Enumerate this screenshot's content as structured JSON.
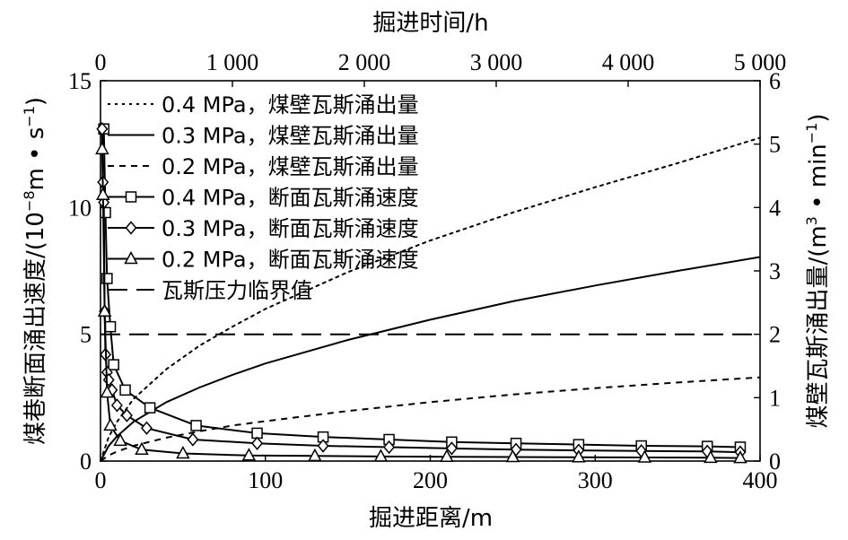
{
  "chart_data": {
    "type": "line",
    "x_bottom": {
      "label": "掘进距离/m",
      "range": [
        0,
        400
      ],
      "ticks": [
        0,
        100,
        200,
        300,
        400
      ],
      "tick_labels": [
        "0",
        "100",
        "200",
        "300",
        "400"
      ]
    },
    "x_top": {
      "label": "掘进时间/h",
      "range": [
        0,
        5000
      ],
      "ticks": [
        0,
        1000,
        2000,
        3000,
        4000,
        5000
      ],
      "tick_labels": [
        "0",
        "1 000",
        "2 000",
        "3 000",
        "4 000",
        "5 000"
      ]
    },
    "y_left": {
      "label_main": "煤巷断面涌出速度/(10",
      "label_sup1": "−8",
      "label_mid": "m • s",
      "label_sup2": "−1",
      "label_end": ")",
      "range": [
        0,
        15
      ],
      "ticks": [
        0,
        5,
        10,
        15
      ],
      "tick_labels": [
        "0",
        "5",
        "10",
        "15"
      ]
    },
    "y_right": {
      "label_main": "煤壁瓦斯涌出量/(m",
      "label_sup1": "3",
      "label_mid": " • min",
      "label_sup2": "−1",
      "label_end": ")",
      "range": [
        0,
        6
      ],
      "ticks": [
        0,
        1,
        2,
        3,
        4,
        5,
        6
      ],
      "tick_labels": [
        "0",
        "1",
        "2",
        "3",
        "4",
        "5",
        "6"
      ]
    },
    "series": [
      {
        "name": "0.4 MPa，煤壁瓦斯涌出量",
        "axis": "right",
        "style": "dotted",
        "marker": "none",
        "x": [
          0,
          5,
          10,
          20,
          40,
          60,
          80,
          100,
          150,
          200,
          250,
          300,
          350,
          400
        ],
        "y": [
          0,
          0.38,
          0.62,
          0.98,
          1.45,
          1.82,
          2.12,
          2.4,
          2.98,
          3.48,
          3.92,
          4.32,
          4.7,
          5.1
        ]
      },
      {
        "name": "0.3 MPa，煤壁瓦斯涌出量",
        "axis": "right",
        "style": "solid",
        "marker": "none",
        "x": [
          0,
          5,
          10,
          20,
          40,
          60,
          80,
          100,
          150,
          200,
          250,
          300,
          350,
          400
        ],
        "y": [
          0,
          0.24,
          0.39,
          0.62,
          0.93,
          1.16,
          1.36,
          1.54,
          1.91,
          2.23,
          2.52,
          2.77,
          3.0,
          3.22
        ]
      },
      {
        "name": "0.2 MPa，煤壁瓦斯涌出量",
        "axis": "right",
        "style": "dashed",
        "marker": "none",
        "x": [
          0,
          5,
          10,
          20,
          40,
          60,
          80,
          100,
          150,
          200,
          250,
          300,
          350,
          400
        ],
        "y": [
          0,
          0.09,
          0.15,
          0.24,
          0.37,
          0.47,
          0.56,
          0.63,
          0.79,
          0.93,
          1.05,
          1.15,
          1.24,
          1.32
        ]
      },
      {
        "name": "0.4 MPa，断面瓦斯涌速度",
        "axis": "left",
        "style": "solid",
        "marker": "square",
        "x": [
          2,
          3,
          4,
          6,
          8,
          15,
          30,
          58,
          95,
          135,
          175,
          213,
          252,
          290,
          328,
          368,
          388
        ],
        "y": [
          13.1,
          9.8,
          7.2,
          5.3,
          3.8,
          2.8,
          2.1,
          1.4,
          1.1,
          0.95,
          0.85,
          0.75,
          0.7,
          0.65,
          0.6,
          0.58,
          0.55
        ]
      },
      {
        "name": "0.3 MPa，断面瓦斯涌速度",
        "axis": "left",
        "style": "solid",
        "marker": "diamond",
        "x": [
          1,
          1.5,
          2,
          2.5,
          3,
          4,
          5,
          7,
          10,
          16,
          28,
          56,
          95,
          135,
          175,
          213,
          252,
          290,
          328,
          368,
          388
        ],
        "y": [
          13.1,
          11.0,
          10.2,
          5.9,
          4.2,
          3.5,
          3.2,
          2.8,
          2.2,
          1.8,
          1.3,
          0.85,
          0.7,
          0.6,
          0.55,
          0.5,
          0.45,
          0.42,
          0.4,
          0.38,
          0.35
        ]
      },
      {
        "name": "0.2 MPa，断面瓦斯涌速度",
        "axis": "left",
        "style": "solid",
        "marker": "triangle",
        "x": [
          1,
          1.5,
          2.5,
          4,
          6,
          12,
          25,
          50,
          90,
          130,
          170,
          210,
          250,
          290,
          330,
          370,
          388
        ],
        "y": [
          12.3,
          10.5,
          5.9,
          2.7,
          1.4,
          0.8,
          0.45,
          0.3,
          0.22,
          0.2,
          0.18,
          0.17,
          0.16,
          0.15,
          0.14,
          0.13,
          0.12
        ]
      },
      {
        "name": "瓦斯压力临界值",
        "axis": "left",
        "style": "longdash",
        "marker": "none",
        "x": [
          0,
          400
        ],
        "y": [
          5,
          5
        ]
      }
    ]
  }
}
